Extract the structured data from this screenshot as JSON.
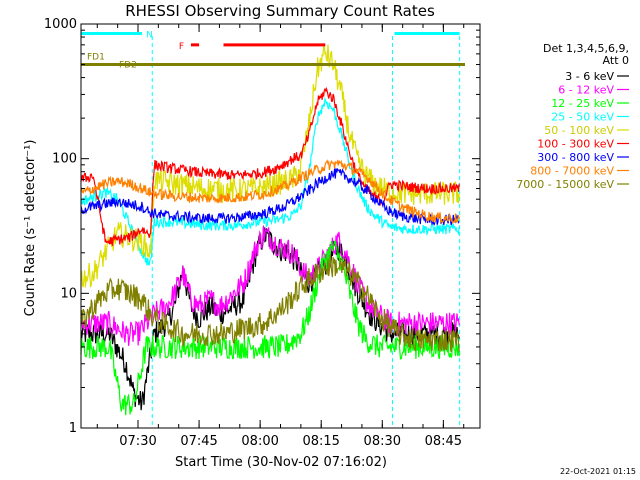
{
  "chart_data": {
    "type": "line",
    "title": "RHESSI Observing Summary Count Rates",
    "xlabel": "Start Time (30-Nov-02 07:16:02)",
    "ylabel": "Count Rate (s⁻¹ detector⁻¹)",
    "y_scale": "log",
    "ylim": [
      1,
      1000
    ],
    "xlim_minutes": [
      0,
      98
    ],
    "x_tick_labels": [
      "07:30",
      "07:45",
      "08:00",
      "08:15",
      "08:30",
      "08:45"
    ],
    "x_tick_minutes": [
      14,
      29,
      44,
      59,
      74,
      89
    ],
    "y_tick_labels": [
      "1",
      "10",
      "100",
      "1000"
    ],
    "y_tick_values": [
      1,
      10,
      100,
      1000
    ],
    "timestamp": "22-Oct-2021 01:15",
    "legend_header": [
      "Det 1,3,4,5,6,9,",
      "Att 0"
    ],
    "series": [
      {
        "name": "3 - 6 keV",
        "color": "#000000",
        "points": [
          [
            0,
            5
          ],
          [
            7,
            5
          ],
          [
            11,
            3
          ],
          [
            13,
            1.8
          ],
          [
            15,
            1.5
          ],
          [
            18,
            5
          ],
          [
            21,
            6
          ],
          [
            23,
            8
          ],
          [
            25,
            15
          ],
          [
            27,
            8
          ],
          [
            29,
            6.5
          ],
          [
            32,
            8
          ],
          [
            34,
            7
          ],
          [
            36,
            7.5
          ],
          [
            40,
            9
          ],
          [
            43,
            20
          ],
          [
            45,
            27
          ],
          [
            47,
            24
          ],
          [
            49,
            21
          ],
          [
            51,
            20
          ],
          [
            53,
            17
          ],
          [
            54,
            14
          ],
          [
            56,
            12
          ],
          [
            58,
            14
          ],
          [
            61,
            18
          ],
          [
            63,
            22
          ],
          [
            65,
            18
          ],
          [
            67,
            12
          ],
          [
            69,
            9
          ],
          [
            71,
            7
          ],
          [
            73,
            6
          ],
          [
            76,
            5
          ],
          [
            80,
            5
          ],
          [
            85,
            5
          ],
          [
            90,
            5
          ],
          [
            93,
            5
          ]
        ]
      },
      {
        "name": "6 - 12 keV",
        "color": "#ff00ff",
        "points": [
          [
            0,
            6
          ],
          [
            7,
            6
          ],
          [
            11,
            5
          ],
          [
            14,
            5
          ],
          [
            18,
            7
          ],
          [
            21,
            8
          ],
          [
            23,
            10
          ],
          [
            25,
            14
          ],
          [
            27,
            9
          ],
          [
            29,
            8
          ],
          [
            32,
            9
          ],
          [
            34,
            8
          ],
          [
            36,
            9
          ],
          [
            40,
            12
          ],
          [
            43,
            22
          ],
          [
            45,
            28
          ],
          [
            47,
            25
          ],
          [
            49,
            22
          ],
          [
            51,
            21
          ],
          [
            53,
            18
          ],
          [
            54,
            15
          ],
          [
            56,
            13
          ],
          [
            58,
            15
          ],
          [
            61,
            20
          ],
          [
            63,
            25
          ],
          [
            65,
            20
          ],
          [
            67,
            14
          ],
          [
            69,
            10
          ],
          [
            71,
            8
          ],
          [
            73,
            7
          ],
          [
            76,
            6
          ],
          [
            80,
            6
          ],
          [
            85,
            6
          ],
          [
            90,
            6
          ],
          [
            93,
            6
          ]
        ]
      },
      {
        "name": "12 - 25 keV",
        "color": "#00ff00",
        "points": [
          [
            0,
            4
          ],
          [
            7,
            4
          ],
          [
            10,
            1.5
          ],
          [
            13,
            1.5
          ],
          [
            16,
            4
          ],
          [
            22,
            4
          ],
          [
            30,
            4
          ],
          [
            40,
            4
          ],
          [
            46,
            4
          ],
          [
            50,
            4
          ],
          [
            54,
            5
          ],
          [
            56,
            7
          ],
          [
            58,
            12
          ],
          [
            60,
            18
          ],
          [
            62,
            22
          ],
          [
            64,
            17
          ],
          [
            66,
            10
          ],
          [
            68,
            6
          ],
          [
            70,
            4.5
          ],
          [
            73,
            4
          ],
          [
            78,
            4
          ],
          [
            85,
            4
          ],
          [
            93,
            4
          ]
        ]
      },
      {
        "name": "25 - 50 keV",
        "color": "#00ffff",
        "points": [
          [
            0,
            48
          ],
          [
            3,
            52
          ],
          [
            6,
            56
          ],
          [
            9,
            50
          ],
          [
            12,
            32
          ],
          [
            15,
            20
          ],
          [
            17,
            16
          ],
          [
            18,
            34
          ],
          [
            22,
            34
          ],
          [
            30,
            32
          ],
          [
            38,
            32
          ],
          [
            44,
            34
          ],
          [
            48,
            35
          ],
          [
            52,
            38
          ],
          [
            54,
            45
          ],
          [
            56,
            80
          ],
          [
            58,
            200
          ],
          [
            60,
            270
          ],
          [
            62,
            230
          ],
          [
            64,
            150
          ],
          [
            66,
            90
          ],
          [
            68,
            60
          ],
          [
            70,
            45
          ],
          [
            72,
            38
          ],
          [
            74,
            34
          ],
          [
            76,
            31
          ],
          [
            80,
            30
          ],
          [
            85,
            30
          ],
          [
            90,
            30
          ],
          [
            93,
            30
          ]
        ]
      },
      {
        "name": "50 - 100 keV",
        "color": "#dddd00",
        "points": [
          [
            0,
            13
          ],
          [
            3,
            14
          ],
          [
            6,
            20
          ],
          [
            9,
            28
          ],
          [
            12,
            26
          ],
          [
            15,
            24
          ],
          [
            17,
            20
          ],
          [
            18,
            70
          ],
          [
            22,
            66
          ],
          [
            30,
            60
          ],
          [
            38,
            58
          ],
          [
            44,
            60
          ],
          [
            48,
            65
          ],
          [
            52,
            70
          ],
          [
            54,
            85
          ],
          [
            56,
            180
          ],
          [
            58,
            450
          ],
          [
            60,
            620
          ],
          [
            62,
            500
          ],
          [
            64,
            300
          ],
          [
            66,
            150
          ],
          [
            68,
            95
          ],
          [
            70,
            75
          ],
          [
            72,
            65
          ],
          [
            74,
            60
          ],
          [
            76,
            57
          ],
          [
            80,
            55
          ],
          [
            85,
            55
          ],
          [
            90,
            55
          ],
          [
            93,
            55
          ]
        ]
      },
      {
        "name": "100 - 300 keV",
        "color": "#ff0000",
        "points": [
          [
            0,
            70
          ],
          [
            3,
            75
          ],
          [
            6,
            24
          ],
          [
            9,
            25
          ],
          [
            12,
            26
          ],
          [
            15,
            30
          ],
          [
            17,
            27
          ],
          [
            18,
            90
          ],
          [
            22,
            85
          ],
          [
            30,
            78
          ],
          [
            38,
            75
          ],
          [
            44,
            78
          ],
          [
            48,
            85
          ],
          [
            52,
            100
          ],
          [
            54,
            105
          ],
          [
            56,
            150
          ],
          [
            58,
            260
          ],
          [
            60,
            320
          ],
          [
            62,
            280
          ],
          [
            64,
            180
          ],
          [
            66,
            110
          ],
          [
            68,
            75
          ],
          [
            70,
            60
          ],
          [
            72,
            52
          ],
          [
            74,
            48
          ],
          [
            76,
            65
          ],
          [
            80,
            62
          ],
          [
            85,
            60
          ],
          [
            90,
            60
          ],
          [
            93,
            60
          ]
        ]
      },
      {
        "name": "300 - 800 keV",
        "color": "#0000ff",
        "points": [
          [
            0,
            42
          ],
          [
            3,
            44
          ],
          [
            6,
            46
          ],
          [
            9,
            48
          ],
          [
            12,
            46
          ],
          [
            15,
            44
          ],
          [
            17,
            40
          ],
          [
            20,
            38
          ],
          [
            25,
            37
          ],
          [
            30,
            36
          ],
          [
            35,
            36
          ],
          [
            40,
            37
          ],
          [
            45,
            39
          ],
          [
            50,
            44
          ],
          [
            55,
            55
          ],
          [
            58,
            65
          ],
          [
            61,
            75
          ],
          [
            63,
            78
          ],
          [
            65,
            74
          ],
          [
            68,
            65
          ],
          [
            71,
            55
          ],
          [
            73,
            48
          ],
          [
            75,
            42
          ],
          [
            78,
            38
          ],
          [
            82,
            36
          ],
          [
            86,
            35
          ],
          [
            90,
            35
          ],
          [
            93,
            35
          ]
        ]
      },
      {
        "name": "800 - 7000 keV",
        "color": "#ff8000",
        "points": [
          [
            0,
            55
          ],
          [
            3,
            60
          ],
          [
            6,
            65
          ],
          [
            9,
            68
          ],
          [
            12,
            65
          ],
          [
            15,
            60
          ],
          [
            17,
            56
          ],
          [
            20,
            54
          ],
          [
            25,
            52
          ],
          [
            30,
            51
          ],
          [
            35,
            51
          ],
          [
            40,
            52
          ],
          [
            45,
            55
          ],
          [
            50,
            62
          ],
          [
            55,
            75
          ],
          [
            58,
            83
          ],
          [
            61,
            90
          ],
          [
            63,
            92
          ],
          [
            65,
            89
          ],
          [
            68,
            80
          ],
          [
            71,
            70
          ],
          [
            73,
            60
          ],
          [
            75,
            52
          ],
          [
            78,
            45
          ],
          [
            82,
            40
          ],
          [
            86,
            37
          ],
          [
            90,
            36
          ],
          [
            93,
            36
          ]
        ]
      },
      {
        "name": "7000 - 15000 keV",
        "color": "#808000",
        "points": [
          [
            0,
            6
          ],
          [
            3,
            8
          ],
          [
            6,
            10
          ],
          [
            9,
            11
          ],
          [
            12,
            10
          ],
          [
            15,
            9
          ],
          [
            17,
            7
          ],
          [
            20,
            6
          ],
          [
            25,
            5
          ],
          [
            30,
            5
          ],
          [
            35,
            5
          ],
          [
            40,
            5.5
          ],
          [
            45,
            6
          ],
          [
            50,
            8
          ],
          [
            55,
            12
          ],
          [
            58,
            14
          ],
          [
            61,
            16
          ],
          [
            63,
            16
          ],
          [
            65,
            15
          ],
          [
            68,
            12
          ],
          [
            71,
            9
          ],
          [
            73,
            7
          ],
          [
            75,
            6
          ],
          [
            78,
            5
          ],
          [
            82,
            4.5
          ],
          [
            86,
            4.5
          ],
          [
            90,
            4.5
          ],
          [
            93,
            4.5
          ]
        ]
      }
    ],
    "annotations": {
      "N": {
        "label": "N",
        "color": "#00ffff",
        "segments": [
          [
            0,
            15
          ],
          [
            77,
            93
          ]
        ],
        "level": 850
      },
      "F": {
        "label": "F",
        "color": "#ff0000",
        "segments": [
          [
            27,
            29
          ],
          [
            35,
            60
          ]
        ],
        "level": 700
      },
      "FD1": {
        "label": "FD1",
        "color": "#808000",
        "level": 500
      },
      "FD2": {
        "label": "FD2"
      },
      "saa_lines_minutes": [
        0,
        17.5,
        76.5,
        93
      ]
    }
  }
}
